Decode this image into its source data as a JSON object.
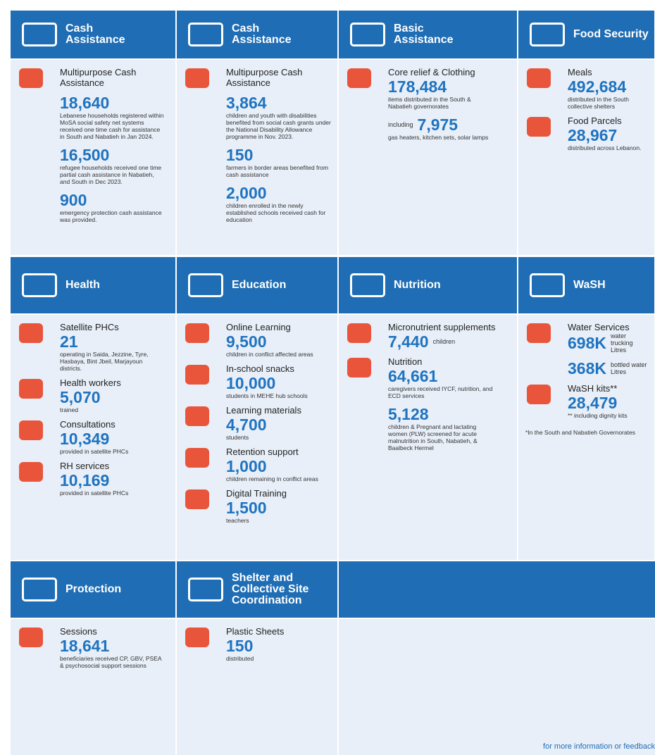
{
  "rows": [
    {
      "columns": [
        {
          "title": "Cash Assistance",
          "items": [
            {
              "label": "Multipurpose Cash Assistance"
            },
            {
              "value": "18,640",
              "text": "Lebanese households registered within MoSA social safety net systems received one time cash for assistance in South and Nabatieh in Jan 2024."
            },
            {
              "value": "16,500",
              "text": "refugee households received one time partial cash assistance in Nabatieh, and South in Dec 2023."
            },
            {
              "value": "900",
              "text": "emergency protection cash assistance was provided."
            }
          ]
        },
        {
          "title": "Cash Assistance",
          "items": [
            {
              "label": "Multipurpose Cash Assistance"
            },
            {
              "value": "3,864",
              "text": "children and youth with disabilities benefited from social cash grants under the National Disability Allowance programme in Nov. 2023."
            },
            {
              "value": "150",
              "text": "farmers in border areas benefited from cash assistance"
            },
            {
              "value": "2,000",
              "text": "children enrolled in the newly established schools received cash for education"
            }
          ]
        },
        {
          "title": "Basic Assistance",
          "items": [
            {
              "label": "Core relief & Clothing",
              "value": "178,484",
              "text": "items distributed in the South & Nabatieh governorates"
            },
            {
              "prefix": "including",
              "value": "7,975",
              "text": "gas heaters, kitchen sets, solar lamps"
            }
          ]
        },
        {
          "title": "Food Security",
          "items": [
            {
              "label": "Meals",
              "value": "492,684",
              "text": "distributed in the South collective shelters"
            },
            {
              "label": "Food Parcels",
              "value": "28,967",
              "text": "distributed across Lebanon."
            }
          ]
        }
      ]
    },
    {
      "columns": [
        {
          "title": "Health",
          "items": [
            {
              "label": "Satellite PHCs",
              "value": "21",
              "text": "operating in Saida, Jezzine, Tyre, Hasbaya, Bint Jbeil, Marjayoun districts."
            },
            {
              "label": "Health workers",
              "value": "5,070",
              "text": "trained"
            },
            {
              "label": "Consultations",
              "value": "10,349",
              "text": "provided in satellite PHCs"
            },
            {
              "label": "RH services",
              "value": "10,169",
              "text": "provided in satellite PHCs"
            }
          ]
        },
        {
          "title": "Education",
          "items": [
            {
              "label": "Online Learning",
              "value": "9,500",
              "text": "children in conflict affected areas"
            },
            {
              "label": "In-school snacks",
              "value": "10,000",
              "text": "students in MEHE hub schools"
            },
            {
              "label": "Learning materials",
              "value": "4,700",
              "text": "students"
            },
            {
              "label": "Retention support",
              "value": "1,000",
              "text": "children remaining in conflict areas"
            },
            {
              "label": "Digital Training",
              "value": "1,500",
              "text": "teachers"
            }
          ]
        },
        {
          "title": "Nutrition",
          "items": [
            {
              "label": "Micronutrient supplements",
              "value": "7,440",
              "unit": "children"
            },
            {
              "label": "Nutrition",
              "value": "64,661",
              "text": "caregivers received IYCF, nutrition, and ECD services"
            },
            {
              "value": "5,128",
              "text": "children & Pregnant and lactating women (PLW) screened for acute malnutrition in South, Nabatieh, & Baalbeck Hermel"
            }
          ]
        },
        {
          "title": "WaSH",
          "items": [
            {
              "label": "Water Services",
              "value": "698K",
              "unit": "water trucking Litres"
            },
            {
              "value": "368K",
              "unit": "bottled water Litres"
            },
            {
              "label": "WaSH kits**",
              "value": "28,479",
              "text": "** including dignity kits"
            },
            {
              "note": "*In the South and Nabatieh Governorates"
            }
          ]
        }
      ]
    },
    {
      "columns": [
        {
          "title": "Protection",
          "items": [
            {
              "label": "Sessions",
              "value": "18,641",
              "text": "beneficiaries received CP, GBV, PSEA & psychosocial support sessions"
            }
          ]
        },
        {
          "title": "Shelter and Collective Site Coordination",
          "items": [
            {
              "label": "Plastic Sheets",
              "value": "150",
              "text": "distributed"
            }
          ]
        }
      ]
    }
  ],
  "footer": "for more information or feedback"
}
